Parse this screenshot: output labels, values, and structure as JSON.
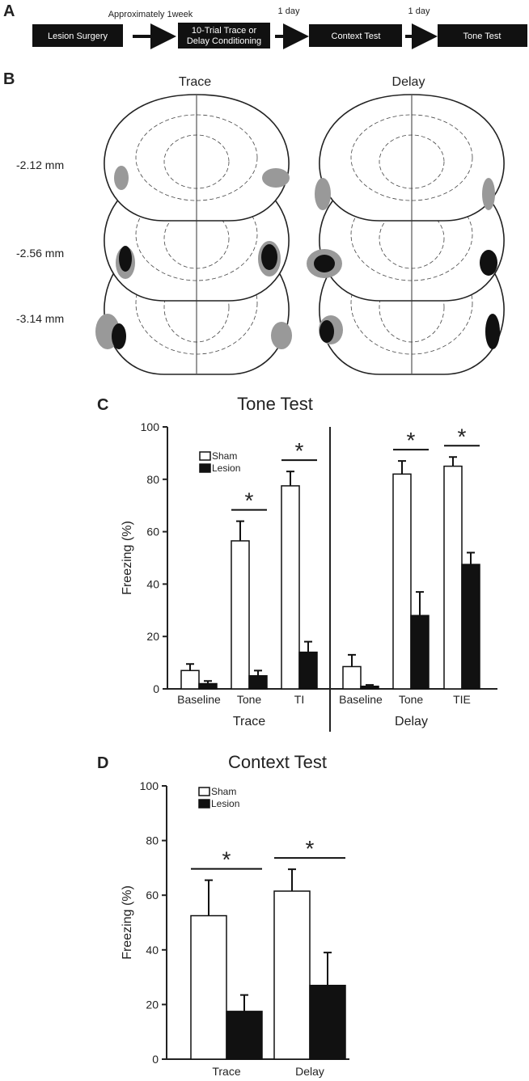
{
  "panel_a": {
    "letter": "A",
    "steps": [
      "Lesion Surgery",
      "10-Trial Trace or Delay Conditioning",
      "Context Test",
      "Tone Test"
    ],
    "intervals": [
      "Approximately 1week",
      "1 day",
      "1 day"
    ]
  },
  "panel_b": {
    "letter": "B",
    "columns": [
      "Trace",
      "Delay"
    ],
    "levels": [
      "-2.12 mm",
      "-2.56 mm",
      "-3.14 mm"
    ]
  },
  "chart_data": [
    {
      "type": "bar",
      "letter": "C",
      "title": "Tone Test",
      "y_label": "Freezing (%)",
      "categories": [
        "Baseline",
        "Tone",
        "TI",
        "Baseline",
        "Tone",
        "TIE"
      ],
      "groups": [
        "Trace",
        "Delay"
      ],
      "series": [
        {
          "name": "Sham",
          "color": "#ffffff",
          "values": [
            7,
            56.5,
            77.5,
            8.5,
            82,
            85
          ],
          "errors": [
            2.5,
            7.5,
            5.5,
            4.5,
            5,
            3.5
          ]
        },
        {
          "name": "Lesion",
          "color": "#111111",
          "values": [
            2,
            5,
            14,
            1,
            28,
            47.5
          ],
          "errors": [
            1,
            2,
            4,
            0.5,
            9,
            4.5
          ]
        }
      ],
      "significance": [
        null,
        "*",
        "*",
        null,
        "*",
        "*"
      ],
      "ylim": [
        0,
        100
      ],
      "yticks": [
        0,
        20,
        40,
        60,
        80,
        100
      ]
    },
    {
      "type": "bar",
      "letter": "D",
      "title": "Context Test",
      "y_label": "Freezing (%)",
      "categories": [
        "Trace",
        "Delay"
      ],
      "series": [
        {
          "name": "Sham",
          "color": "#ffffff",
          "values": [
            52.5,
            61.5
          ],
          "errors": [
            13,
            8
          ]
        },
        {
          "name": "Lesion",
          "color": "#111111",
          "values": [
            17.5,
            27
          ],
          "errors": [
            6,
            12
          ]
        }
      ],
      "significance": [
        "*",
        "*"
      ],
      "ylim": [
        0,
        100
      ],
      "yticks": [
        0,
        20,
        40,
        60,
        80,
        100
      ]
    }
  ]
}
